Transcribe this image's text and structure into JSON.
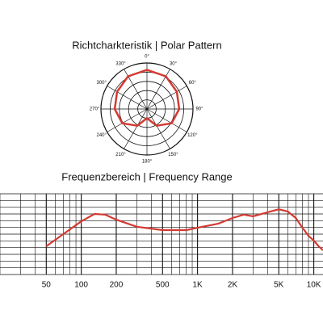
{
  "chart_data": [
    {
      "type": "polar",
      "title": "Richtcharkteristik | Polar Pattern",
      "thetaticks": [
        {
          "value": 0,
          "label": "0°"
        },
        {
          "value": 30,
          "label": "30°"
        },
        {
          "value": 60,
          "label": "60°"
        },
        {
          "value": 90,
          "label": "90°"
        },
        {
          "value": 120,
          "label": "120°"
        },
        {
          "value": 150,
          "label": "150°"
        },
        {
          "value": 180,
          "label": "180°"
        },
        {
          "value": 210,
          "label": "210°"
        },
        {
          "value": 240,
          "label": "240°"
        },
        {
          "value": 270,
          "label": "270°"
        },
        {
          "value": 300,
          "label": "300°"
        },
        {
          "value": 330,
          "label": "330°"
        }
      ],
      "theta": [
        0,
        30,
        60,
        90,
        120,
        150,
        180,
        210,
        240,
        270,
        300,
        330
      ],
      "r": [
        0.85,
        0.82,
        0.75,
        0.7,
        0.62,
        0.42,
        0.2,
        0.42,
        0.62,
        0.7,
        0.75,
        0.82
      ],
      "rlim": [
        0,
        1
      ],
      "rticks": [
        0.2,
        0.4,
        0.6,
        0.8,
        1.0
      ],
      "color": "#d33a32"
    },
    {
      "type": "line",
      "title": "Frequenzbereich | Frequency Range",
      "x": [
        50,
        70,
        100,
        130,
        160,
        200,
        300,
        500,
        800,
        1000,
        1500,
        2000,
        2500,
        3000,
        4000,
        5000,
        6000,
        7000,
        8000,
        9000,
        10000,
        11000,
        12000
      ],
      "values": [
        -3.6,
        0,
        3.8,
        6,
        5.8,
        4.3,
        2.2,
        1.2,
        1.2,
        1.9,
        3.1,
        4.8,
        5.8,
        5.3,
        6.5,
        7.4,
        6.7,
        4.8,
        1.9,
        -0.5,
        -1.9,
        -3.6,
        -4.8
      ],
      "color": "#d33a32",
      "xscale": "log",
      "xlim": [
        20,
        12000
      ],
      "xticks": [
        50,
        100,
        200,
        500,
        {
          "value": 1000,
          "label": "1K"
        },
        {
          "value": 2000,
          "label": "2K"
        },
        {
          "value": 5000,
          "label": "5K"
        },
        {
          "value": 10000,
          "label": "10K"
        }
      ],
      "xminor": [
        20,
        30,
        40,
        60,
        70,
        80,
        90,
        300,
        400,
        600,
        700,
        800,
        900,
        3000,
        4000,
        6000,
        7000,
        8000,
        9000
      ],
      "ylim": [
        -12,
        12
      ],
      "yticks": [
        -12,
        -10,
        -8,
        -6,
        -4,
        -2,
        0,
        2,
        4,
        6,
        8,
        10,
        12
      ],
      "grid": true
    }
  ]
}
